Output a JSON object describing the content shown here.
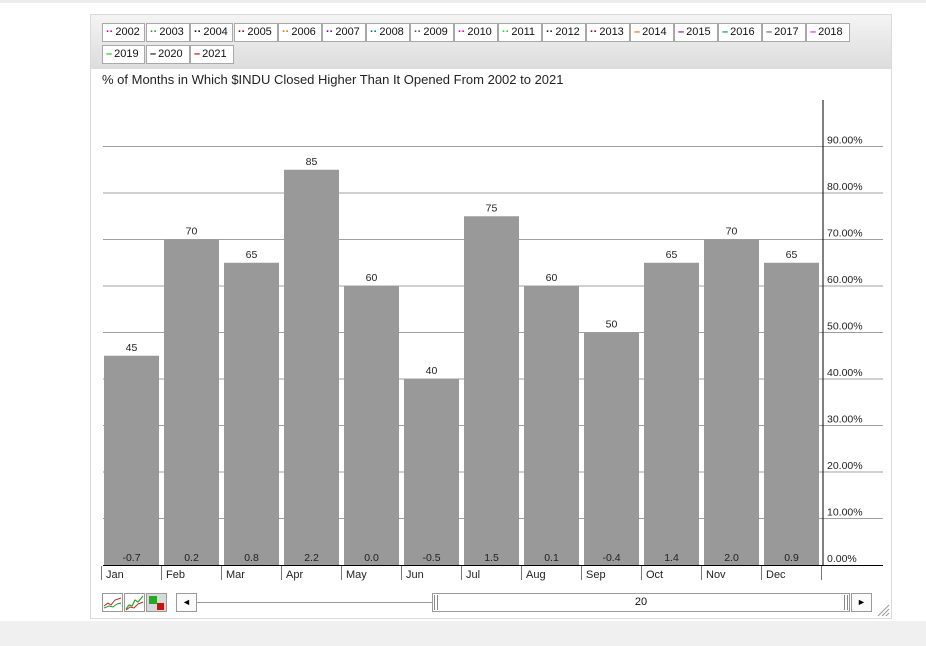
{
  "legend": {
    "items": [
      {
        "label": "2002",
        "color": "#c000c0"
      },
      {
        "label": "2003",
        "color": "#22aa22"
      },
      {
        "label": "2004",
        "color": "#111111"
      },
      {
        "label": "2005",
        "color": "#880000"
      },
      {
        "label": "2006",
        "color": "#dd7700"
      },
      {
        "label": "2007",
        "color": "#7700aa"
      },
      {
        "label": "2008",
        "color": "#007777"
      },
      {
        "label": "2009",
        "color": "#555555"
      },
      {
        "label": "2010",
        "color": "#cc00cc"
      },
      {
        "label": "2011",
        "color": "#33cc33"
      },
      {
        "label": "2012",
        "color": "#222222"
      },
      {
        "label": "2013",
        "color": "#880022"
      },
      {
        "label": "2014",
        "color": "#ee6600"
      },
      {
        "label": "2015",
        "color": "#8800cc"
      },
      {
        "label": "2016",
        "color": "#008888"
      },
      {
        "label": "2017",
        "color": "#666666"
      },
      {
        "label": "2018",
        "color": "#dd22dd"
      },
      {
        "label": "2019",
        "color": "#22bb22"
      },
      {
        "label": "2020",
        "color": "#111111"
      },
      {
        "label": "2021",
        "color": "#bb0000"
      }
    ]
  },
  "chart_data": {
    "type": "bar",
    "title": "% of Months in Which $INDU Closed Higher Than It Opened From 2002 to 2021",
    "categories": [
      "Jan",
      "Feb",
      "Mar",
      "Apr",
      "May",
      "Jun",
      "Jul",
      "Aug",
      "Sep",
      "Oct",
      "Nov",
      "Dec"
    ],
    "values": [
      45,
      70,
      65,
      85,
      60,
      40,
      75,
      60,
      50,
      65,
      70,
      65
    ],
    "bottom_labels": [
      "-0.7",
      "0.2",
      "0.8",
      "2.2",
      "0.0",
      "-0.5",
      "1.5",
      "0.1",
      "-0.4",
      "1.4",
      "2.0",
      "0.9"
    ],
    "y_ticks": [
      {
        "value": 0,
        "label": "0.00%"
      },
      {
        "value": 10,
        "label": "10.00%"
      },
      {
        "value": 20,
        "label": "20.00%"
      },
      {
        "value": 30,
        "label": "30.00%"
      },
      {
        "value": 40,
        "label": "40.00%"
      },
      {
        "value": 50,
        "label": "50.00%"
      },
      {
        "value": 60,
        "label": "60.00%"
      },
      {
        "value": 70,
        "label": "70.00%"
      },
      {
        "value": 80,
        "label": "80.00%"
      },
      {
        "value": 90,
        "label": "90.00%"
      }
    ],
    "ylim": [
      0,
      100
    ],
    "grid": true,
    "bar_color": "#999999",
    "y_axis_position": "right"
  },
  "controls": {
    "scroll_left": "◄",
    "scroll_right": "►",
    "slider_value": "20"
  }
}
